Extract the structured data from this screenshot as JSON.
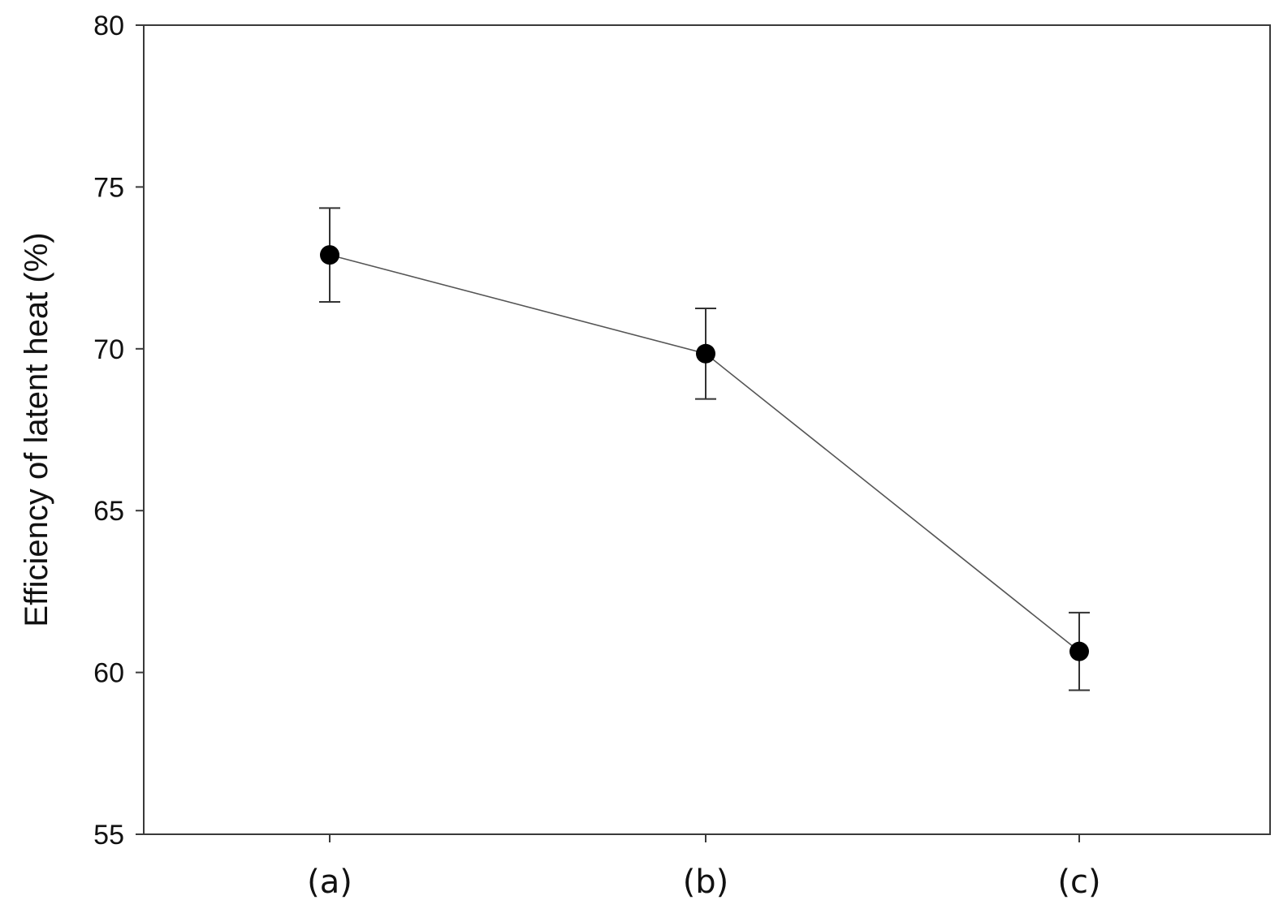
{
  "chart_data": {
    "type": "line",
    "title": "",
    "xlabel": "",
    "ylabel": "Efficiency of latent heat (%)",
    "categories": [
      "(a)",
      "(b)",
      "(c)"
    ],
    "series": [
      {
        "values": [
          72.9,
          69.85,
          60.65
        ],
        "error": [
          1.45,
          1.4,
          1.2
        ]
      }
    ],
    "ylim": [
      55,
      80
    ],
    "yticks": [
      55,
      60,
      65,
      70,
      75,
      80
    ],
    "ytick_labels": [
      "55",
      "60",
      "65",
      "70",
      "75",
      "80"
    ],
    "grid": false,
    "legend": "none",
    "marker": "filled-circle",
    "colors": {
      "marker": "#000000",
      "line": "#555555",
      "axis": "#3a3a3a"
    }
  }
}
